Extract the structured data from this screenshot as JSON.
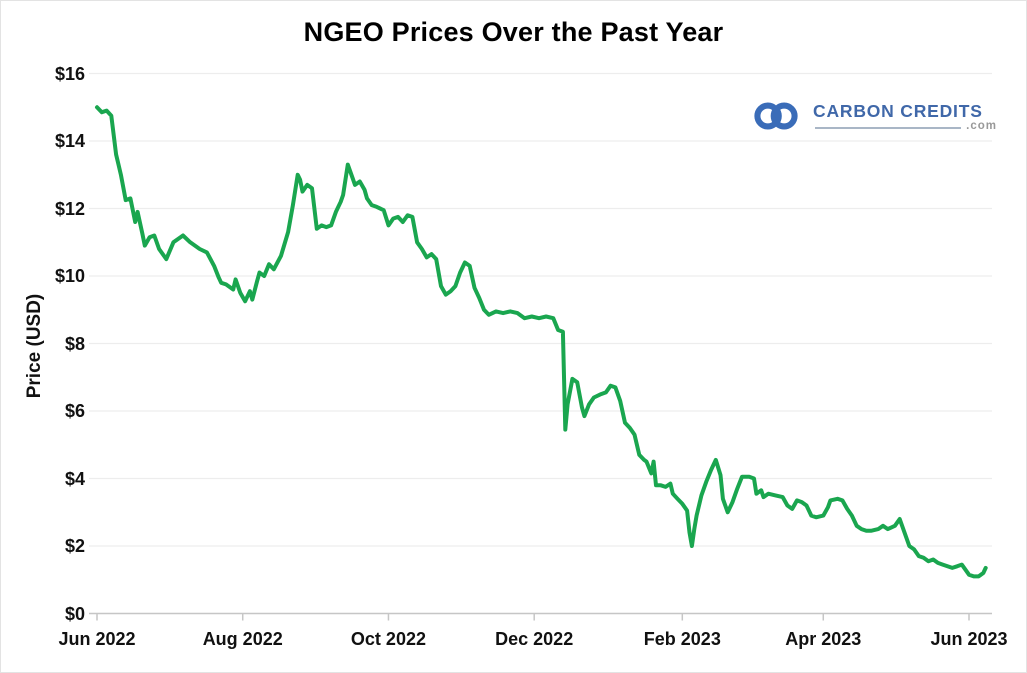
{
  "page": {
    "background": "#ffffff",
    "border_color": "#e3e3e3"
  },
  "colors": {
    "line_green": "#1aa64f",
    "grid": "#ededed",
    "axis": "#c6c6c6",
    "text": "#111111"
  },
  "logo": {
    "brand": "CARBON CREDITS",
    "tld": ".com",
    "icon": "infinity-chain-icon",
    "text_color": "#4068a9",
    "icon_color": "#3a6cb8",
    "rule_color": "#a9b6c6",
    "tld_color": "#999999"
  },
  "chart_data": {
    "type": "line",
    "title": "NGEO Prices Over the Past Year",
    "xlabel": "",
    "ylabel": "Price (USD)",
    "legend": "none",
    "grid": "horizontal-light",
    "x_axis": {
      "ticks": [
        {
          "label": "Jun 2022",
          "date": "2022-06-01"
        },
        {
          "label": "Aug 2022",
          "date": "2022-08-01"
        },
        {
          "label": "Oct 2022",
          "date": "2022-10-01"
        },
        {
          "label": "Dec 2022",
          "date": "2022-12-01"
        },
        {
          "label": "Feb 2023",
          "date": "2023-02-01"
        },
        {
          "label": "Apr 2023",
          "date": "2023-04-01"
        },
        {
          "label": "Jun 2023",
          "date": "2023-06-01"
        }
      ]
    },
    "y_axis": {
      "min": 0,
      "max": 16,
      "step": 2,
      "unit": "USD",
      "tick_labels": [
        "$0",
        "$2",
        "$4",
        "$6",
        "$8",
        "$10",
        "$12",
        "$14",
        "$16"
      ]
    },
    "series": [
      {
        "name": "NGEO price",
        "color": "#1aa64f",
        "points": [
          [
            "2022-06-01",
            15.0
          ],
          [
            "2022-06-03",
            14.85
          ],
          [
            "2022-06-05",
            14.9
          ],
          [
            "2022-06-07",
            14.75
          ],
          [
            "2022-06-09",
            13.6
          ],
          [
            "2022-06-10",
            13.3
          ],
          [
            "2022-06-11",
            13.0
          ],
          [
            "2022-06-13",
            12.25
          ],
          [
            "2022-06-15",
            12.3
          ],
          [
            "2022-06-17",
            11.6
          ],
          [
            "2022-06-18",
            11.9
          ],
          [
            "2022-06-20",
            11.25
          ],
          [
            "2022-06-21",
            10.9
          ],
          [
            "2022-06-23",
            11.15
          ],
          [
            "2022-06-25",
            11.2
          ],
          [
            "2022-06-27",
            10.8
          ],
          [
            "2022-06-30",
            10.5
          ],
          [
            "2022-07-03",
            11.0
          ],
          [
            "2022-07-05",
            11.1
          ],
          [
            "2022-07-07",
            11.2
          ],
          [
            "2022-07-10",
            11.0
          ],
          [
            "2022-07-14",
            10.8
          ],
          [
            "2022-07-17",
            10.7
          ],
          [
            "2022-07-20",
            10.3
          ],
          [
            "2022-07-22",
            9.95
          ],
          [
            "2022-07-23",
            9.8
          ],
          [
            "2022-07-25",
            9.75
          ],
          [
            "2022-07-28",
            9.6
          ],
          [
            "2022-07-29",
            9.9
          ],
          [
            "2022-07-31",
            9.5
          ],
          [
            "2022-08-02",
            9.25
          ],
          [
            "2022-08-04",
            9.55
          ],
          [
            "2022-08-05",
            9.3
          ],
          [
            "2022-08-07",
            9.85
          ],
          [
            "2022-08-08",
            10.1
          ],
          [
            "2022-08-10",
            10.0
          ],
          [
            "2022-08-12",
            10.35
          ],
          [
            "2022-08-14",
            10.2
          ],
          [
            "2022-08-17",
            10.6
          ],
          [
            "2022-08-20",
            11.3
          ],
          [
            "2022-08-22",
            12.1
          ],
          [
            "2022-08-24",
            13.0
          ],
          [
            "2022-08-25",
            12.85
          ],
          [
            "2022-08-26",
            12.5
          ],
          [
            "2022-08-28",
            12.7
          ],
          [
            "2022-08-30",
            12.6
          ],
          [
            "2022-09-01",
            11.4
          ],
          [
            "2022-09-03",
            11.5
          ],
          [
            "2022-09-05",
            11.45
          ],
          [
            "2022-09-07",
            11.5
          ],
          [
            "2022-09-09",
            11.9
          ],
          [
            "2022-09-11",
            12.2
          ],
          [
            "2022-09-12",
            12.4
          ],
          [
            "2022-09-14",
            13.3
          ],
          [
            "2022-09-16",
            12.9
          ],
          [
            "2022-09-17",
            12.7
          ],
          [
            "2022-09-19",
            12.8
          ],
          [
            "2022-09-21",
            12.55
          ],
          [
            "2022-09-22",
            12.3
          ],
          [
            "2022-09-24",
            12.1
          ],
          [
            "2022-09-26",
            12.05
          ],
          [
            "2022-09-29",
            11.95
          ],
          [
            "2022-10-01",
            11.5
          ],
          [
            "2022-10-03",
            11.7
          ],
          [
            "2022-10-05",
            11.75
          ],
          [
            "2022-10-07",
            11.6
          ],
          [
            "2022-10-09",
            11.8
          ],
          [
            "2022-10-11",
            11.75
          ],
          [
            "2022-10-13",
            11.0
          ],
          [
            "2022-10-15",
            10.8
          ],
          [
            "2022-10-17",
            10.55
          ],
          [
            "2022-10-19",
            10.65
          ],
          [
            "2022-10-21",
            10.5
          ],
          [
            "2022-10-23",
            9.7
          ],
          [
            "2022-10-25",
            9.45
          ],
          [
            "2022-10-27",
            9.55
          ],
          [
            "2022-10-29",
            9.7
          ],
          [
            "2022-10-31",
            10.1
          ],
          [
            "2022-11-02",
            10.4
          ],
          [
            "2022-11-04",
            10.3
          ],
          [
            "2022-11-06",
            9.65
          ],
          [
            "2022-11-08",
            9.35
          ],
          [
            "2022-11-10",
            9.0
          ],
          [
            "2022-11-12",
            8.85
          ],
          [
            "2022-11-15",
            8.95
          ],
          [
            "2022-11-18",
            8.9
          ],
          [
            "2022-11-21",
            8.95
          ],
          [
            "2022-11-24",
            8.9
          ],
          [
            "2022-11-27",
            8.75
          ],
          [
            "2022-11-30",
            8.8
          ],
          [
            "2022-12-03",
            8.75
          ],
          [
            "2022-12-06",
            8.8
          ],
          [
            "2022-12-09",
            8.75
          ],
          [
            "2022-12-11",
            8.4
          ],
          [
            "2022-12-13",
            8.35
          ],
          [
            "2022-12-14",
            5.45
          ],
          [
            "2022-12-15",
            6.2
          ],
          [
            "2022-12-17",
            6.95
          ],
          [
            "2022-12-19",
            6.85
          ],
          [
            "2022-12-21",
            6.1
          ],
          [
            "2022-12-22",
            5.85
          ],
          [
            "2022-12-24",
            6.2
          ],
          [
            "2022-12-26",
            6.4
          ],
          [
            "2022-12-29",
            6.5
          ],
          [
            "2022-12-31",
            6.55
          ],
          [
            "2023-01-02",
            6.75
          ],
          [
            "2023-01-04",
            6.7
          ],
          [
            "2023-01-06",
            6.3
          ],
          [
            "2023-01-08",
            5.65
          ],
          [
            "2023-01-10",
            5.5
          ],
          [
            "2023-01-12",
            5.3
          ],
          [
            "2023-01-13",
            5.0
          ],
          [
            "2023-01-14",
            4.7
          ],
          [
            "2023-01-16",
            4.55
          ],
          [
            "2023-01-17",
            4.5
          ],
          [
            "2023-01-19",
            4.15
          ],
          [
            "2023-01-20",
            4.5
          ],
          [
            "2023-01-21",
            3.8
          ],
          [
            "2023-01-23",
            3.8
          ],
          [
            "2023-01-25",
            3.75
          ],
          [
            "2023-01-27",
            3.85
          ],
          [
            "2023-01-28",
            3.55
          ],
          [
            "2023-01-30",
            3.4
          ],
          [
            "2023-02-01",
            3.25
          ],
          [
            "2023-02-03",
            3.05
          ],
          [
            "2023-02-04",
            2.4
          ],
          [
            "2023-02-05",
            2.0
          ],
          [
            "2023-02-06",
            2.5
          ],
          [
            "2023-02-07",
            2.9
          ],
          [
            "2023-02-09",
            3.5
          ],
          [
            "2023-02-11",
            3.9
          ],
          [
            "2023-02-13",
            4.25
          ],
          [
            "2023-02-15",
            4.55
          ],
          [
            "2023-02-17",
            4.1
          ],
          [
            "2023-02-18",
            3.4
          ],
          [
            "2023-02-20",
            3.0
          ],
          [
            "2023-02-22",
            3.3
          ],
          [
            "2023-02-24",
            3.7
          ],
          [
            "2023-02-26",
            4.05
          ],
          [
            "2023-03-01",
            4.05
          ],
          [
            "2023-03-03",
            4.0
          ],
          [
            "2023-03-04",
            3.55
          ],
          [
            "2023-03-06",
            3.65
          ],
          [
            "2023-03-07",
            3.45
          ],
          [
            "2023-03-09",
            3.55
          ],
          [
            "2023-03-12",
            3.5
          ],
          [
            "2023-03-15",
            3.45
          ],
          [
            "2023-03-17",
            3.2
          ],
          [
            "2023-03-19",
            3.1
          ],
          [
            "2023-03-21",
            3.35
          ],
          [
            "2023-03-23",
            3.3
          ],
          [
            "2023-03-25",
            3.2
          ],
          [
            "2023-03-27",
            2.9
          ],
          [
            "2023-03-29",
            2.85
          ],
          [
            "2023-04-01",
            2.9
          ],
          [
            "2023-04-03",
            3.15
          ],
          [
            "2023-04-04",
            3.35
          ],
          [
            "2023-04-07",
            3.4
          ],
          [
            "2023-04-09",
            3.35
          ],
          [
            "2023-04-11",
            3.1
          ],
          [
            "2023-04-13",
            2.9
          ],
          [
            "2023-04-15",
            2.6
          ],
          [
            "2023-04-17",
            2.5
          ],
          [
            "2023-04-19",
            2.45
          ],
          [
            "2023-04-21",
            2.45
          ],
          [
            "2023-04-24",
            2.5
          ],
          [
            "2023-04-26",
            2.6
          ],
          [
            "2023-04-28",
            2.5
          ],
          [
            "2023-05-01",
            2.6
          ],
          [
            "2023-05-03",
            2.8
          ],
          [
            "2023-05-05",
            2.4
          ],
          [
            "2023-05-07",
            2.0
          ],
          [
            "2023-05-09",
            1.9
          ],
          [
            "2023-05-11",
            1.7
          ],
          [
            "2023-05-13",
            1.65
          ],
          [
            "2023-05-15",
            1.55
          ],
          [
            "2023-05-17",
            1.6
          ],
          [
            "2023-05-19",
            1.5
          ],
          [
            "2023-05-21",
            1.45
          ],
          [
            "2023-05-23",
            1.4
          ],
          [
            "2023-05-25",
            1.35
          ],
          [
            "2023-05-27",
            1.4
          ],
          [
            "2023-05-29",
            1.45
          ],
          [
            "2023-05-31",
            1.25
          ],
          [
            "2023-06-01",
            1.15
          ],
          [
            "2023-06-03",
            1.1
          ],
          [
            "2023-06-05",
            1.1
          ],
          [
            "2023-06-07",
            1.2
          ],
          [
            "2023-06-08",
            1.35
          ]
        ]
      }
    ]
  }
}
